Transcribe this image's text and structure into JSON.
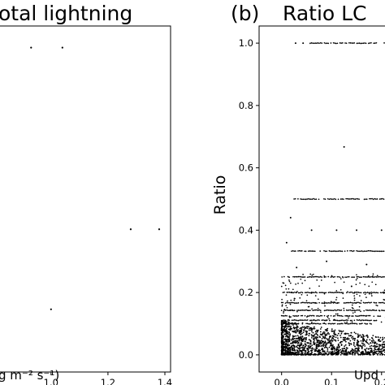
{
  "chart_data": [
    {
      "panel_label": "",
      "type": "scatter",
      "title": "otal lightning",
      "xlabel": "g m⁻² s⁻¹)",
      "ylabel": "",
      "xticks": [
        "1.0",
        "1.2",
        "1.4"
      ],
      "xtick_values": [
        1.0,
        1.2,
        1.4
      ],
      "xlim": [
        0.815,
        1.42
      ],
      "ylim": [
        0,
        16
      ],
      "points": [
        {
          "x": 0.93,
          "y": 15.0
        },
        {
          "x": 1.04,
          "y": 15.0
        },
        {
          "x": 1.28,
          "y": 6.6
        },
        {
          "x": 1.38,
          "y": 6.6
        },
        {
          "x": 1.0,
          "y": 2.9
        }
      ]
    },
    {
      "panel_label": "(b)",
      "type": "scatter",
      "title": "Ratio LC",
      "xlabel": "Upd",
      "ylabel": "Ratio",
      "yticks": [
        "0.0",
        "0.2",
        "0.4",
        "0.6",
        "0.8",
        "1.0"
      ],
      "ytick_values": [
        0.0,
        0.2,
        0.4,
        0.6,
        0.8,
        1.0
      ],
      "xticks": [
        "0.0",
        "0.1",
        "0.2"
      ],
      "xtick_values": [
        0.0,
        0.1,
        0.2
      ],
      "xlim": [
        -0.045,
        0.215
      ],
      "ylim": [
        -0.055,
        1.055
      ],
      "horizontal_bands": [
        {
          "y": 1.0,
          "x_start": 0.057,
          "x_end": 0.215
        },
        {
          "y": 0.5,
          "x_start": 0.025,
          "x_end": 0.215
        },
        {
          "y": 0.333,
          "x_start": 0.02,
          "x_end": 0.215
        },
        {
          "y": 0.25,
          "x_start": 0.005,
          "x_end": 0.215
        },
        {
          "y": 0.2,
          "x_start": 0.003,
          "x_end": 0.215
        },
        {
          "y": 0.167,
          "x_start": 0.0,
          "x_end": 0.215
        },
        {
          "y": 0.143,
          "x_start": 0.0,
          "x_end": 0.215
        },
        {
          "y": 0.125,
          "x_start": 0.0,
          "x_end": 0.2
        },
        {
          "y": 0.111,
          "x_start": 0.0,
          "x_end": 0.19
        },
        {
          "y": 0.1,
          "x_start": 0.0,
          "x_end": 0.18
        }
      ],
      "isolated_points": [
        {
          "x": 0.028,
          "y": 1.0
        },
        {
          "x": 0.043,
          "y": 1.0
        },
        {
          "x": 0.125,
          "y": 0.667
        },
        {
          "x": 0.018,
          "y": 0.44
        },
        {
          "x": 0.06,
          "y": 0.4
        },
        {
          "x": 0.11,
          "y": 0.4
        },
        {
          "x": 0.15,
          "y": 0.4
        },
        {
          "x": 0.2,
          "y": 0.4
        },
        {
          "x": 0.01,
          "y": 0.36
        },
        {
          "x": 0.03,
          "y": 0.28
        },
        {
          "x": 0.09,
          "y": 0.3
        },
        {
          "x": 0.14,
          "y": 0.22
        },
        {
          "x": 0.17,
          "y": 0.29
        }
      ],
      "dense_cluster": {
        "x_range": [
          0.0,
          0.21
        ],
        "y_range": [
          0.0,
          0.1
        ],
        "description_free": true
      }
    }
  ]
}
